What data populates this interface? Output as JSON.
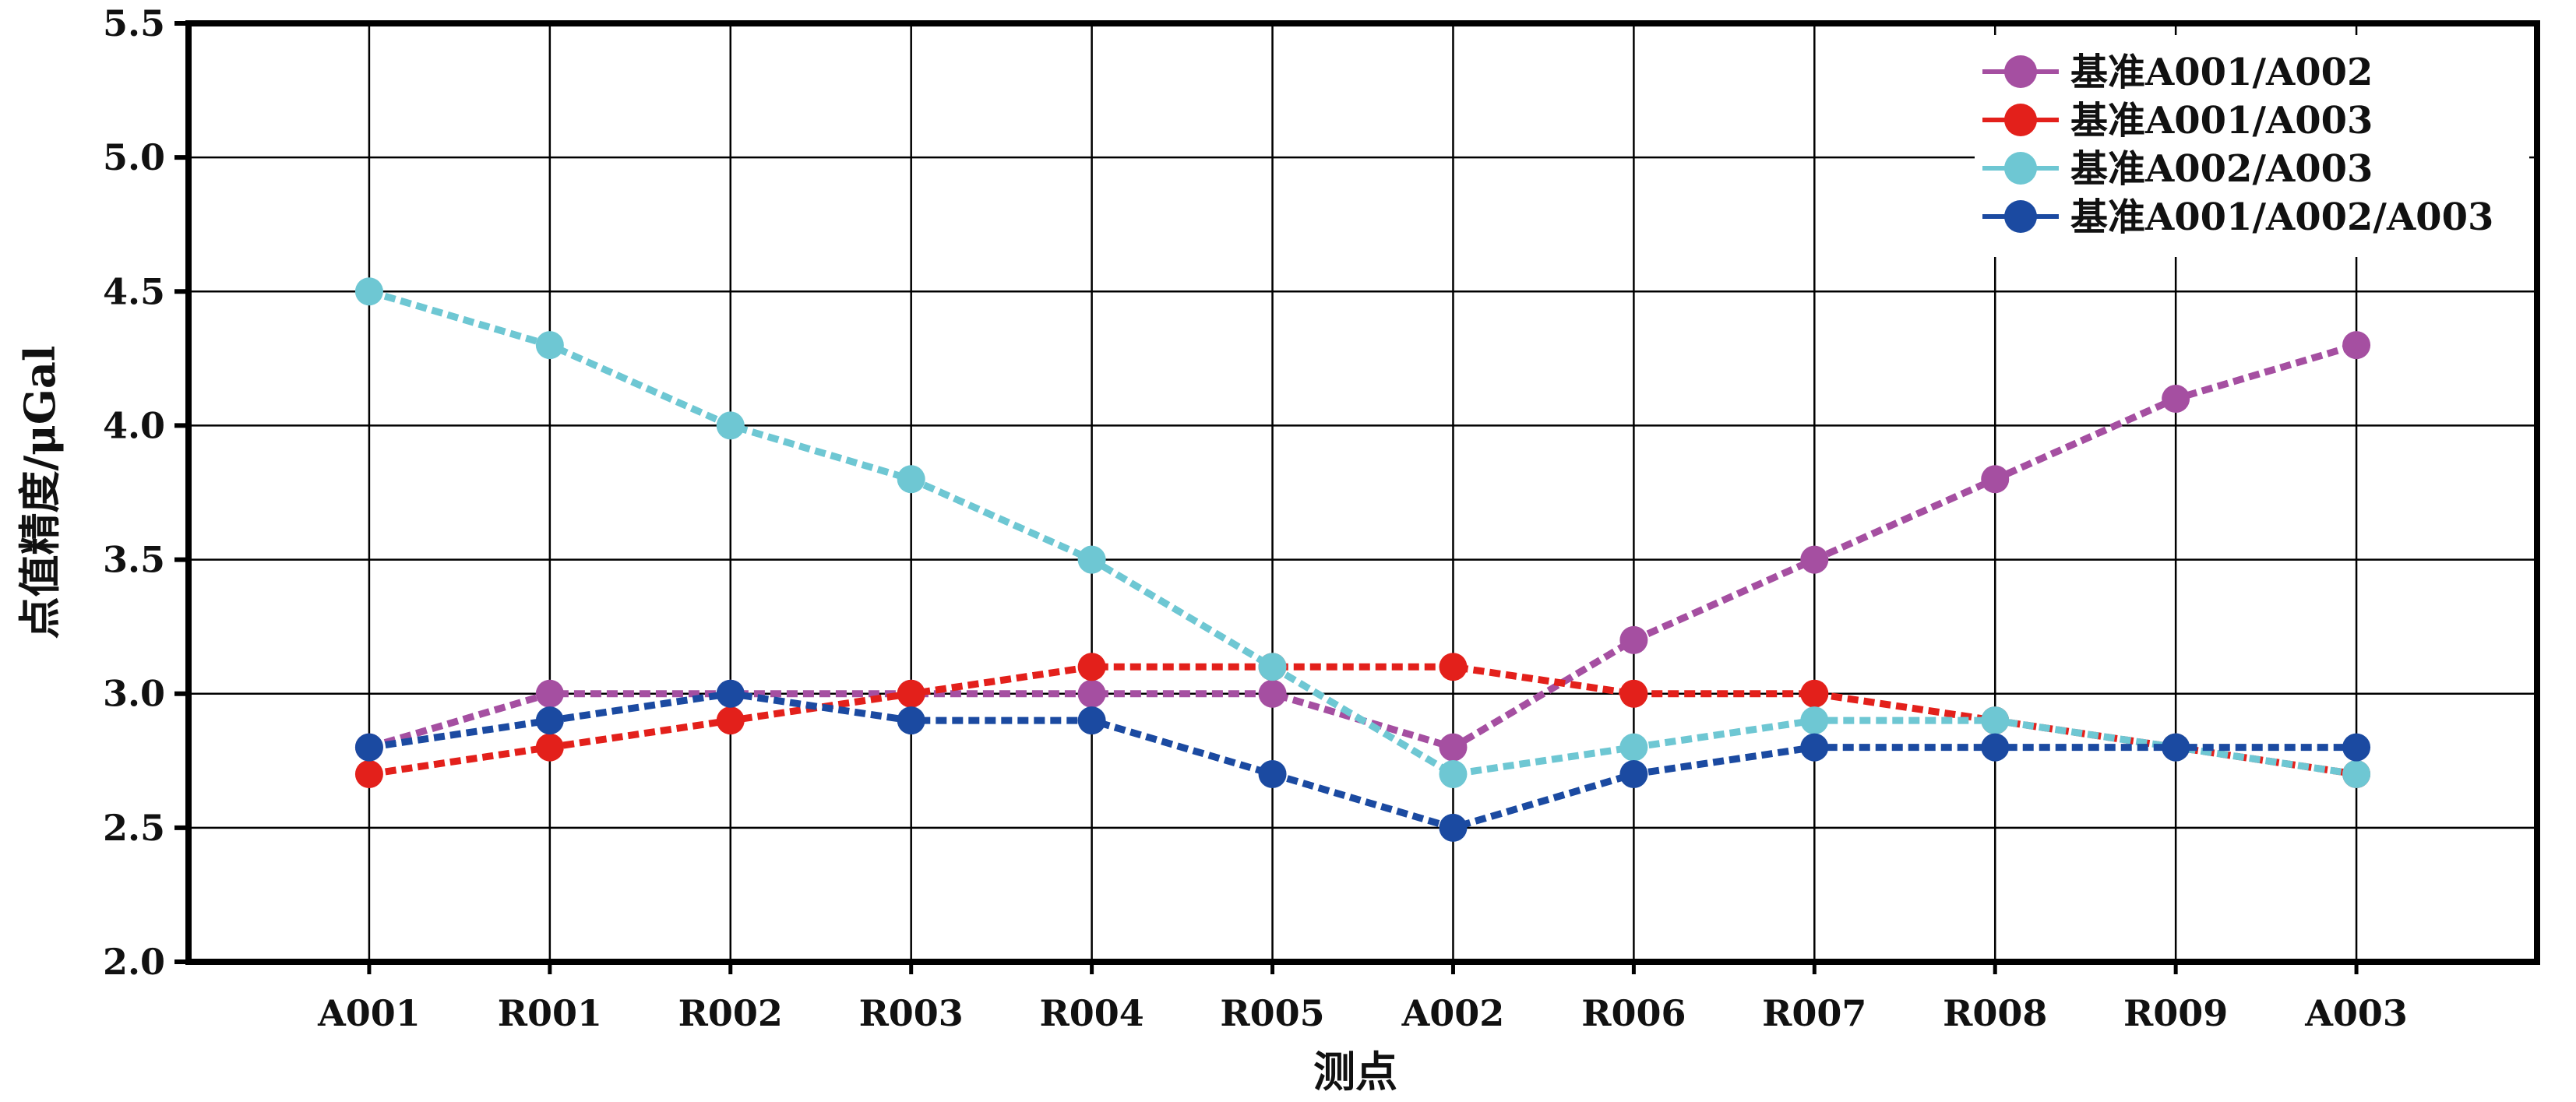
{
  "chart_data": {
    "type": "line",
    "title": "",
    "xlabel": "测点",
    "ylabel": "点值精度/μGal",
    "categories": [
      "A001",
      "R001",
      "R002",
      "R003",
      "R004",
      "R005",
      "A002",
      "R006",
      "R007",
      "R008",
      "R009",
      "A003"
    ],
    "ylim": [
      2.0,
      5.5
    ],
    "yticks": [
      2.0,
      2.5,
      3.0,
      3.5,
      4.0,
      4.5,
      5.0,
      5.5
    ],
    "ytick_labels": [
      "2.0",
      "2.5",
      "3.0",
      "3.5",
      "4.0",
      "4.5",
      "5.0",
      "5.5"
    ],
    "grid": true,
    "legend_position": "top-right",
    "line_style": "dashed",
    "series": [
      {
        "name": "基准A001/A002",
        "color": "#a54fa1",
        "values": [
          2.8,
          3.0,
          3.0,
          3.0,
          3.0,
          3.0,
          2.8,
          3.2,
          3.5,
          3.8,
          4.1,
          4.3
        ]
      },
      {
        "name": "基准A001/A003",
        "color": "#e3201b",
        "values": [
          2.7,
          2.8,
          2.9,
          3.0,
          3.1,
          3.1,
          3.1,
          3.0,
          3.0,
          2.9,
          2.8,
          2.7
        ]
      },
      {
        "name": "基准A002/A003",
        "color": "#6ec7d3",
        "values": [
          4.5,
          4.3,
          4.0,
          3.8,
          3.5,
          3.1,
          2.7,
          2.8,
          2.9,
          2.9,
          2.8,
          2.7
        ]
      },
      {
        "name": "基准A001/A002/A003",
        "color": "#1b4aa1",
        "values": [
          2.8,
          2.9,
          3.0,
          2.9,
          2.9,
          2.7,
          2.5,
          2.7,
          2.8,
          2.8,
          2.8,
          2.8
        ]
      }
    ]
  }
}
